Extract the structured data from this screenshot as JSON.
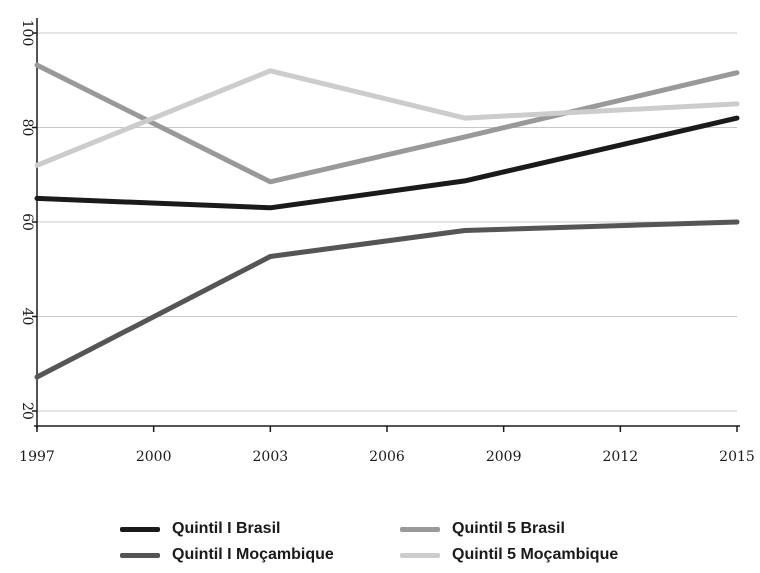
{
  "chart_data": {
    "type": "line",
    "title": "",
    "xlabel": "",
    "ylabel": "",
    "x": [
      1997,
      2003,
      2008,
      2015
    ],
    "xticks": [
      "1997",
      "2000",
      "2003",
      "2006",
      "2009",
      "2012",
      "2015"
    ],
    "yticks": [
      "20",
      "40",
      "60",
      "80",
      "100"
    ],
    "xlim": [
      1997,
      2015
    ],
    "ylim": [
      20,
      100
    ],
    "grid": "horizontal",
    "legend_position": "bottom",
    "series": [
      {
        "name": "Quintil I Brasil",
        "color": "#1a1a1a",
        "values": [
          65,
          63,
          68.7,
          82
        ]
      },
      {
        "name": "Quintil I Moçambique",
        "color": "#555555",
        "values": [
          27.2,
          52.7,
          58.2,
          60
        ]
      },
      {
        "name": "Quintil 5 Brasil",
        "color": "#999999",
        "values": [
          93.2,
          68.5,
          78,
          91.6
        ]
      },
      {
        "name": "Quintil 5 Moçambique",
        "color": "#cccccc",
        "values": [
          72,
          92,
          82,
          85
        ]
      }
    ]
  }
}
